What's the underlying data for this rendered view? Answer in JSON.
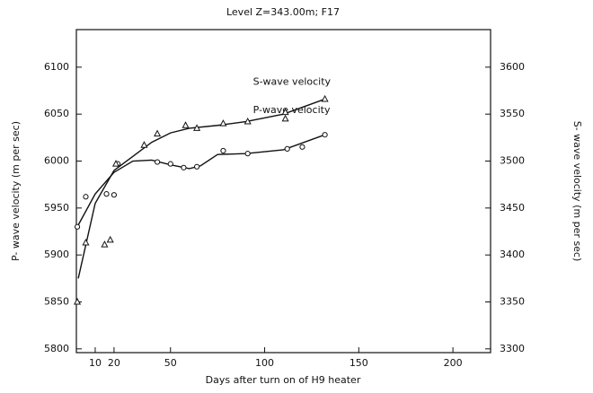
{
  "chart_data": {
    "type": "scatter",
    "title": "Level Z=343.00m; F17",
    "xlabel": "Days after turn on of H9 heater",
    "ylabel": "P- wave velocity (m per sec)",
    "y2label": "S- wave velocity (m per sec)",
    "xlim": [
      0,
      220
    ],
    "xticks": [
      10,
      20,
      50,
      100,
      150,
      200
    ],
    "ylim": [
      5796,
      6140
    ],
    "yticks": [
      5800,
      5850,
      5900,
      5950,
      6000,
      6050,
      6100
    ],
    "y2lim": [
      3296,
      3640
    ],
    "y2ticks": [
      3300,
      3350,
      3400,
      3450,
      3500,
      3550,
      3600
    ],
    "series": [
      {
        "name": "P-wave velocity",
        "axis": "y",
        "marker": "circle",
        "color": "#111",
        "x": [
          0.5,
          5,
          16,
          20,
          22,
          43,
          50,
          57,
          64,
          78,
          91,
          112,
          120,
          132
        ],
        "values": [
          5930,
          5962,
          5965,
          5964,
          5997,
          5999,
          5997,
          5993,
          5994,
          6011,
          6008,
          6013,
          6015,
          6028
        ],
        "fit_x": [
          0.5,
          10,
          20,
          30,
          40,
          50,
          60,
          66,
          75,
          90,
          110,
          132
        ],
        "fit_values": [
          5930,
          5965,
          5988,
          6000,
          6001,
          5996,
          5992,
          5995,
          6007,
          6008,
          6012,
          6028
        ]
      },
      {
        "name": "S-wave velocity",
        "axis": "y2",
        "marker": "triangle",
        "color": "#111",
        "x": [
          0.5,
          5,
          15,
          18,
          21,
          36,
          43,
          58,
          64,
          78,
          91,
          111,
          111,
          132
        ],
        "values": [
          3350,
          3413,
          3411,
          3416,
          3497,
          3517,
          3529,
          3538,
          3535,
          3540,
          3542,
          3552,
          3545,
          3566
        ],
        "fit_x": [
          1,
          10,
          20,
          30,
          40,
          50,
          60,
          75,
          90,
          110,
          132
        ],
        "fit_values": [
          3375,
          3455,
          3490,
          3505,
          3520,
          3530,
          3535,
          3538,
          3542,
          3550,
          3566
        ]
      }
    ]
  }
}
